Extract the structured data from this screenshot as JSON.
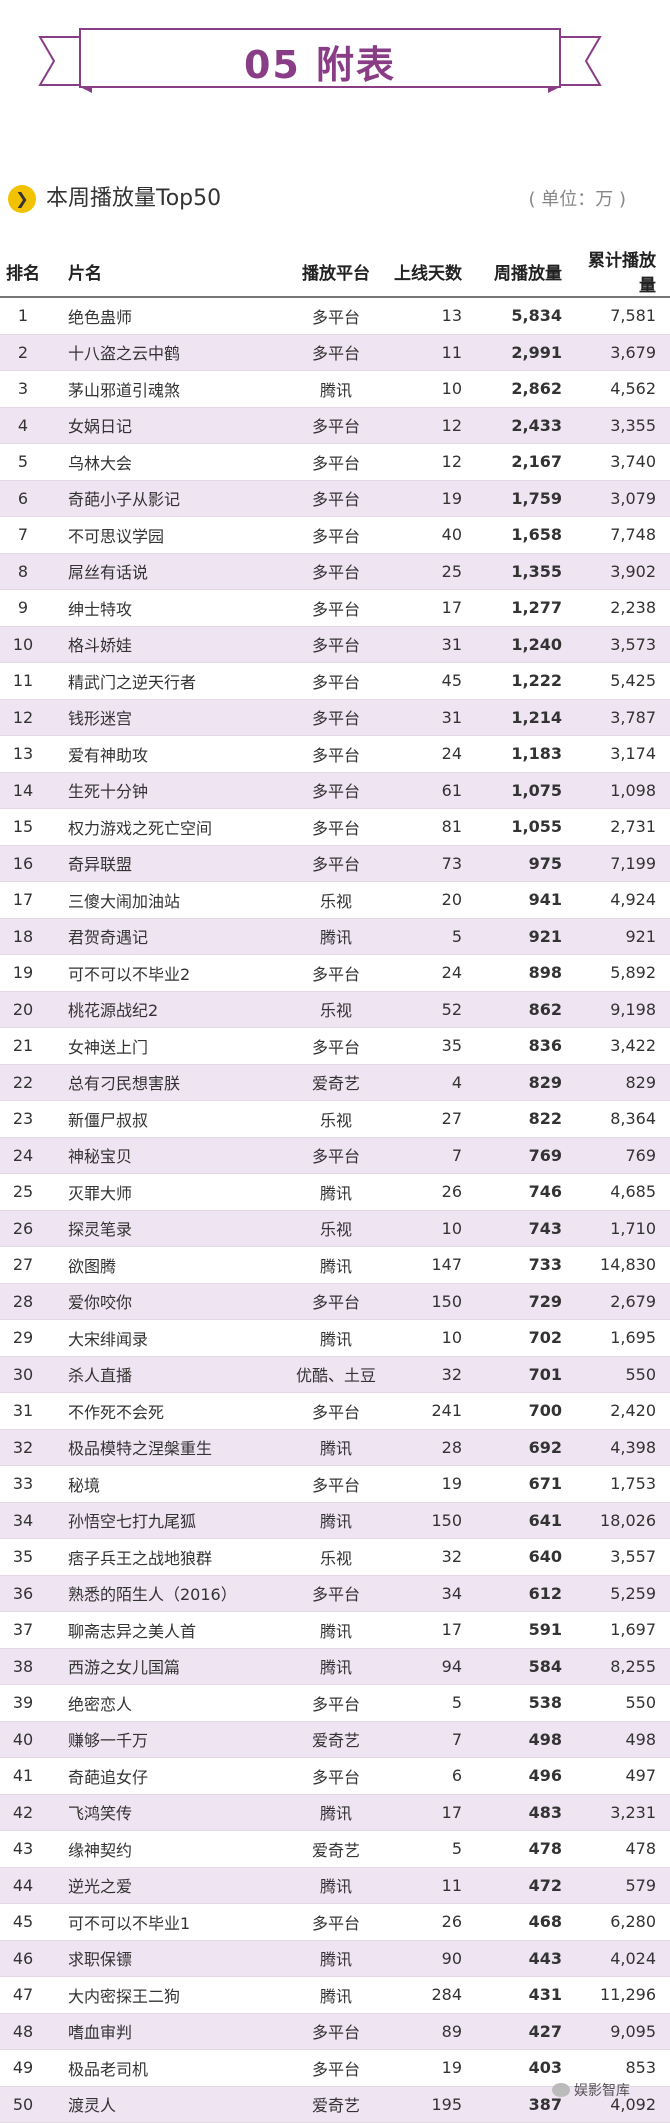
{
  "banner": {
    "title": "05 附表",
    "color": "#8a3d87"
  },
  "section": {
    "icon": "chevron-right-icon",
    "title": "本周播放量Top50",
    "unit": "( 单位：万 )"
  },
  "table": {
    "headers": {
      "rank": "排名",
      "name": "片名",
      "platform": "播放平台",
      "days": "上线天数",
      "weekly": "周播放量",
      "total": "累计播放量"
    },
    "rows": [
      {
        "rank": "1",
        "name": "绝色蛊师",
        "platform": "多平台",
        "days": "13",
        "weekly": "5,834",
        "total": "7,581"
      },
      {
        "rank": "2",
        "name": "十八盗之云中鹤",
        "platform": "多平台",
        "days": "11",
        "weekly": "2,991",
        "total": "3,679"
      },
      {
        "rank": "3",
        "name": "茅山邪道引魂煞",
        "platform": "腾讯",
        "days": "10",
        "weekly": "2,862",
        "total": "4,562"
      },
      {
        "rank": "4",
        "name": "女娲日记",
        "platform": "多平台",
        "days": "12",
        "weekly": "2,433",
        "total": "3,355"
      },
      {
        "rank": "5",
        "name": "乌林大会",
        "platform": "多平台",
        "days": "12",
        "weekly": "2,167",
        "total": "3,740"
      },
      {
        "rank": "6",
        "name": "奇葩小子从影记",
        "platform": "多平台",
        "days": "19",
        "weekly": "1,759",
        "total": "3,079"
      },
      {
        "rank": "7",
        "name": "不可思议学园",
        "platform": "多平台",
        "days": "40",
        "weekly": "1,658",
        "total": "7,748"
      },
      {
        "rank": "8",
        "name": "屌丝有话说",
        "platform": "多平台",
        "days": "25",
        "weekly": "1,355",
        "total": "3,902"
      },
      {
        "rank": "9",
        "name": "绅士特攻",
        "platform": "多平台",
        "days": "17",
        "weekly": "1,277",
        "total": "2,238"
      },
      {
        "rank": "10",
        "name": "格斗娇娃",
        "platform": "多平台",
        "days": "31",
        "weekly": "1,240",
        "total": "3,573"
      },
      {
        "rank": "11",
        "name": "精武门之逆天行者",
        "platform": "多平台",
        "days": "45",
        "weekly": "1,222",
        "total": "5,425"
      },
      {
        "rank": "12",
        "name": "钱形迷宫",
        "platform": "多平台",
        "days": "31",
        "weekly": "1,214",
        "total": "3,787"
      },
      {
        "rank": "13",
        "name": "爱有神助攻",
        "platform": "多平台",
        "days": "24",
        "weekly": "1,183",
        "total": "3,174"
      },
      {
        "rank": "14",
        "name": "生死十分钟",
        "platform": "多平台",
        "days": "61",
        "weekly": "1,075",
        "total": "1,098"
      },
      {
        "rank": "15",
        "name": "权力游戏之死亡空间",
        "platform": "多平台",
        "days": "81",
        "weekly": "1,055",
        "total": "2,731"
      },
      {
        "rank": "16",
        "name": "奇异联盟",
        "platform": "多平台",
        "days": "73",
        "weekly": "975",
        "total": "7,199"
      },
      {
        "rank": "17",
        "name": "三傻大闹加油站",
        "platform": "乐视",
        "days": "20",
        "weekly": "941",
        "total": "4,924"
      },
      {
        "rank": "18",
        "name": "君贺奇遇记",
        "platform": "腾讯",
        "days": "5",
        "weekly": "921",
        "total": "921"
      },
      {
        "rank": "19",
        "name": "可不可以不毕业2",
        "platform": "多平台",
        "days": "24",
        "weekly": "898",
        "total": "5,892"
      },
      {
        "rank": "20",
        "name": "桃花源战纪2",
        "platform": "乐视",
        "days": "52",
        "weekly": "862",
        "total": "9,198"
      },
      {
        "rank": "21",
        "name": "女神送上门",
        "platform": "多平台",
        "days": "35",
        "weekly": "836",
        "total": "3,422"
      },
      {
        "rank": "22",
        "name": "总有刁民想害朕",
        "platform": "爱奇艺",
        "days": "4",
        "weekly": "829",
        "total": "829"
      },
      {
        "rank": "23",
        "name": "新僵尸叔叔",
        "platform": "乐视",
        "days": "27",
        "weekly": "822",
        "total": "8,364"
      },
      {
        "rank": "24",
        "name": "神秘宝贝",
        "platform": "多平台",
        "days": "7",
        "weekly": "769",
        "total": "769"
      },
      {
        "rank": "25",
        "name": "灭罪大师",
        "platform": "腾讯",
        "days": "26",
        "weekly": "746",
        "total": "4,685"
      },
      {
        "rank": "26",
        "name": "探灵笔录",
        "platform": "乐视",
        "days": "10",
        "weekly": "743",
        "total": "1,710"
      },
      {
        "rank": "27",
        "name": "欲图腾",
        "platform": "腾讯",
        "days": "147",
        "weekly": "733",
        "total": "14,830"
      },
      {
        "rank": "28",
        "name": "爱你咬你",
        "platform": "多平台",
        "days": "150",
        "weekly": "729",
        "total": "2,679"
      },
      {
        "rank": "29",
        "name": "大宋绯闻录",
        "platform": "腾讯",
        "days": "10",
        "weekly": "702",
        "total": "1,695"
      },
      {
        "rank": "30",
        "name": "杀人直播",
        "platform": "优酷、土豆",
        "days": "32",
        "weekly": "701",
        "total": "550"
      },
      {
        "rank": "31",
        "name": "不作死不会死",
        "platform": "多平台",
        "days": "241",
        "weekly": "700",
        "total": "2,420"
      },
      {
        "rank": "32",
        "name": "极品模特之涅槃重生",
        "platform": "腾讯",
        "days": "28",
        "weekly": "692",
        "total": "4,398"
      },
      {
        "rank": "33",
        "name": "秘境",
        "platform": "多平台",
        "days": "19",
        "weekly": "671",
        "total": "1,753"
      },
      {
        "rank": "34",
        "name": "孙悟空七打九尾狐",
        "platform": "腾讯",
        "days": "150",
        "weekly": "641",
        "total": "18,026"
      },
      {
        "rank": "35",
        "name": "痞子兵王之战地狼群",
        "platform": "乐视",
        "days": "32",
        "weekly": "640",
        "total": "3,557"
      },
      {
        "rank": "36",
        "name": "熟悉的陌生人（2016）",
        "platform": "多平台",
        "days": "34",
        "weekly": "612",
        "total": "5,259"
      },
      {
        "rank": "37",
        "name": "聊斋志异之美人首",
        "platform": "腾讯",
        "days": "17",
        "weekly": "591",
        "total": "1,697"
      },
      {
        "rank": "38",
        "name": "西游之女儿国篇",
        "platform": "腾讯",
        "days": "94",
        "weekly": "584",
        "total": "8,255"
      },
      {
        "rank": "39",
        "name": "绝密恋人",
        "platform": "多平台",
        "days": "5",
        "weekly": "538",
        "total": "550"
      },
      {
        "rank": "40",
        "name": "赚够一千万",
        "platform": "爱奇艺",
        "days": "7",
        "weekly": "498",
        "total": "498"
      },
      {
        "rank": "41",
        "name": "奇葩追女仔",
        "platform": "多平台",
        "days": "6",
        "weekly": "496",
        "total": "497"
      },
      {
        "rank": "42",
        "name": "飞鸿笑传",
        "platform": "腾讯",
        "days": "17",
        "weekly": "483",
        "total": "3,231"
      },
      {
        "rank": "43",
        "name": "缘神契约",
        "platform": "爱奇艺",
        "days": "5",
        "weekly": "478",
        "total": "478"
      },
      {
        "rank": "44",
        "name": "逆光之爱",
        "platform": "腾讯",
        "days": "11",
        "weekly": "472",
        "total": "579"
      },
      {
        "rank": "45",
        "name": "可不可以不毕业1",
        "platform": "多平台",
        "days": "26",
        "weekly": "468",
        "total": "6,280"
      },
      {
        "rank": "46",
        "name": "求职保镖",
        "platform": "腾讯",
        "days": "90",
        "weekly": "443",
        "total": "4,024"
      },
      {
        "rank": "47",
        "name": "大内密探王二狗",
        "platform": "腾讯",
        "days": "284",
        "weekly": "431",
        "total": "11,296"
      },
      {
        "rank": "48",
        "name": "嗜血审判",
        "platform": "多平台",
        "days": "89",
        "weekly": "427",
        "total": "9,095"
      },
      {
        "rank": "49",
        "name": "极品老司机",
        "platform": "多平台",
        "days": "19",
        "weekly": "403",
        "total": "853"
      },
      {
        "rank": "50",
        "name": "渡灵人",
        "platform": "爱奇艺",
        "days": "195",
        "weekly": "387",
        "total": "4,092"
      }
    ]
  },
  "footer": {
    "label": "娱影智库",
    "icon": "wechat-icon"
  }
}
